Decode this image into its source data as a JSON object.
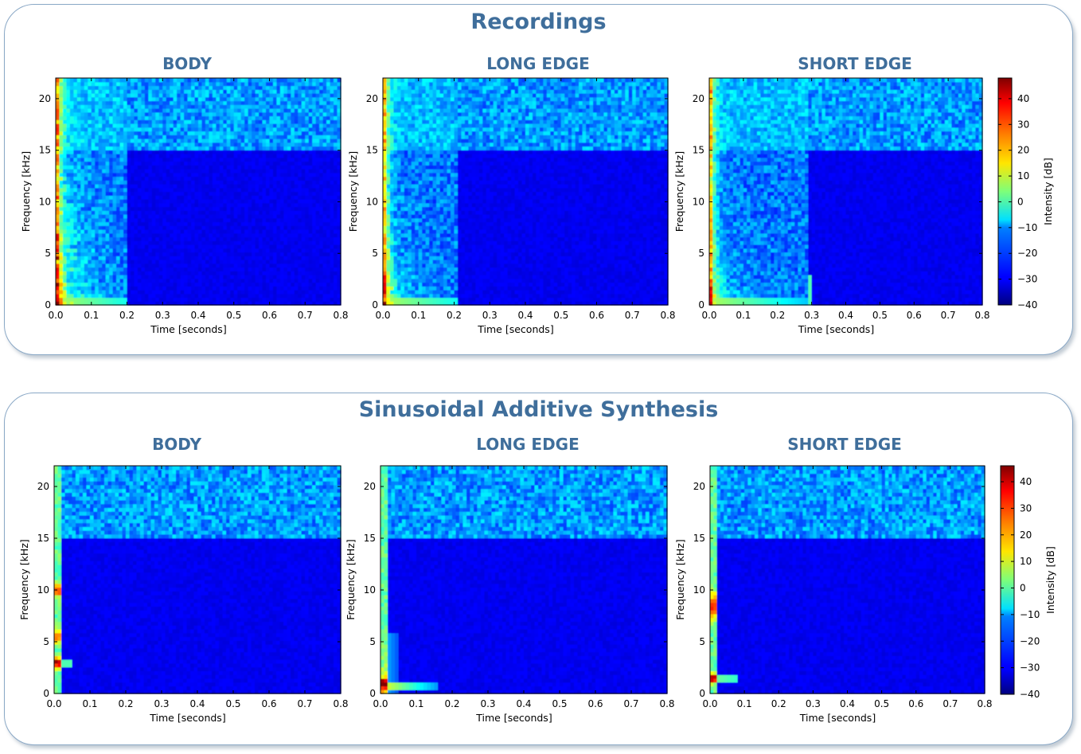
{
  "sections": [
    {
      "title": "Recordings",
      "subtitles": [
        "BODY",
        "LONG EDGE",
        "SHORT EDGE"
      ]
    },
    {
      "title": "Sinusoidal Additive Synthesis",
      "subtitles": [
        "BODY",
        "LONG EDGE",
        "SHORT EDGE"
      ]
    }
  ],
  "chart_data": [
    {
      "type": "heatmap",
      "title": "BODY",
      "group": "Recordings",
      "xlabel": "Time [seconds]",
      "ylabel": "Frequency [kHz]",
      "xlim": [
        0.0,
        0.8
      ],
      "ylim": [
        0,
        22
      ],
      "decay_end_seconds": 0.2,
      "xticks": [
        "0.0",
        "0.1",
        "0.2",
        "0.3",
        "0.4",
        "0.5",
        "0.6",
        "0.7",
        "0.8"
      ],
      "yticks": [
        "0",
        "5",
        "10",
        "15",
        "20"
      ]
    },
    {
      "type": "heatmap",
      "title": "LONG EDGE",
      "group": "Recordings",
      "xlabel": "Time [seconds]",
      "ylabel": "Frequency [kHz]",
      "xlim": [
        0.0,
        0.8
      ],
      "ylim": [
        0,
        22
      ],
      "decay_end_seconds": 0.21,
      "xticks": [
        "0.0",
        "0.1",
        "0.2",
        "0.3",
        "0.4",
        "0.5",
        "0.6",
        "0.7",
        "0.8"
      ],
      "yticks": [
        "0",
        "5",
        "10",
        "15",
        "20"
      ]
    },
    {
      "type": "heatmap",
      "title": "SHORT EDGE",
      "group": "Recordings",
      "xlabel": "Time [seconds]",
      "ylabel": "Frequency [kHz]",
      "xlim": [
        0.0,
        0.8
      ],
      "ylim": [
        0,
        22
      ],
      "decay_end_seconds": 0.29,
      "xticks": [
        "0.0",
        "0.1",
        "0.2",
        "0.3",
        "0.4",
        "0.5",
        "0.6",
        "0.7",
        "0.8"
      ],
      "yticks": [
        "0",
        "5",
        "10",
        "15",
        "20"
      ],
      "colorbar": {
        "label": "Intensity [dB]",
        "ticks": [
          "40",
          "30",
          "20",
          "10",
          "0",
          "−10",
          "−20",
          "−30",
          "−40"
        ],
        "range": [
          -40,
          48
        ]
      }
    },
    {
      "type": "heatmap",
      "title": "BODY",
      "group": "Sinusoidal Additive Synthesis",
      "xlabel": "Time [seconds]",
      "ylabel": "Frequency [kHz]",
      "xlim": [
        0.0,
        0.8
      ],
      "ylim": [
        0,
        22
      ],
      "xticks": [
        "0.0",
        "0.1",
        "0.2",
        "0.3",
        "0.4",
        "0.5",
        "0.6",
        "0.7",
        "0.8"
      ],
      "yticks": [
        "0",
        "5",
        "10",
        "15",
        "20"
      ]
    },
    {
      "type": "heatmap",
      "title": "LONG EDGE",
      "group": "Sinusoidal Additive Synthesis",
      "xlabel": "Time [seconds]",
      "ylabel": "Frequency [kHz]",
      "xlim": [
        0.0,
        0.8
      ],
      "ylim": [
        0,
        22
      ],
      "xticks": [
        "0.0",
        "0.1",
        "0.2",
        "0.3",
        "0.4",
        "0.5",
        "0.6",
        "0.7",
        "0.8"
      ],
      "yticks": [
        "0",
        "5",
        "10",
        "15",
        "20"
      ]
    },
    {
      "type": "heatmap",
      "title": "SHORT EDGE",
      "group": "Sinusoidal Additive Synthesis",
      "xlabel": "Time [seconds]",
      "ylabel": "Frequency [kHz]",
      "xlim": [
        0.0,
        0.8
      ],
      "ylim": [
        0,
        22
      ],
      "xticks": [
        "0.0",
        "0.1",
        "0.2",
        "0.3",
        "0.4",
        "0.5",
        "0.6",
        "0.7",
        "0.8"
      ],
      "yticks": [
        "0",
        "5",
        "10",
        "15",
        "20"
      ],
      "colorbar": {
        "label": "Intensity [dB]",
        "ticks": [
          "40",
          "30",
          "20",
          "10",
          "0",
          "−10",
          "−20",
          "−30",
          "−40"
        ],
        "range": [
          -40,
          46
        ]
      }
    }
  ]
}
